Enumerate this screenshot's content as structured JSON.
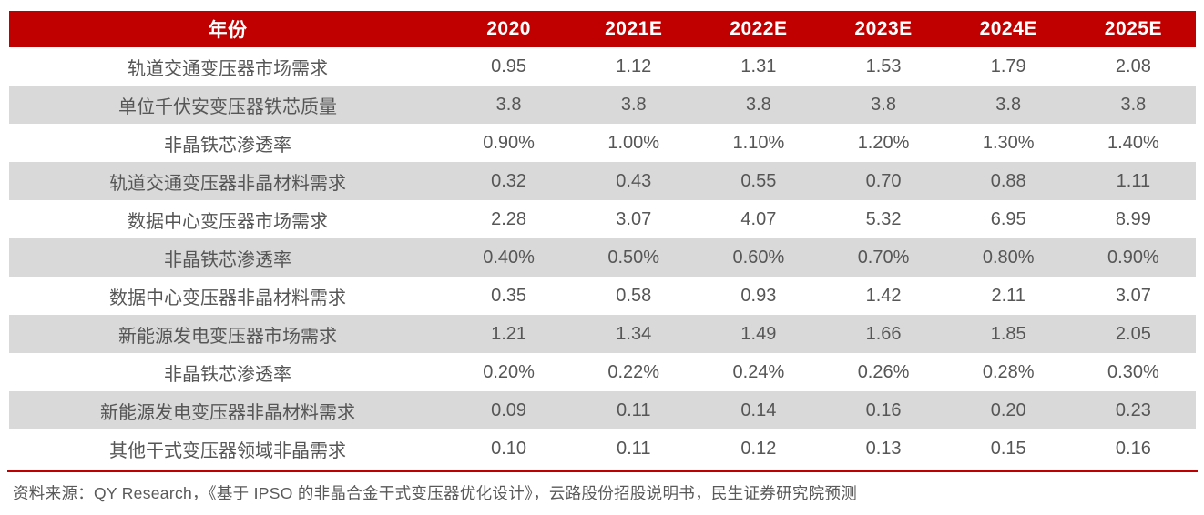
{
  "chart_data": {
    "type": "table",
    "title": "",
    "columns": [
      "年份",
      "2020",
      "2021E",
      "2022E",
      "2023E",
      "2024E",
      "2025E"
    ],
    "rows": [
      {
        "label": "轨道交通变压器市场需求",
        "values": [
          "0.95",
          "1.12",
          "1.31",
          "1.53",
          "1.79",
          "2.08"
        ]
      },
      {
        "label": "单位千伏安变压器铁芯质量",
        "values": [
          "3.8",
          "3.8",
          "3.8",
          "3.8",
          "3.8",
          "3.8"
        ]
      },
      {
        "label": "非晶铁芯渗透率",
        "values": [
          "0.90%",
          "1.00%",
          "1.10%",
          "1.20%",
          "1.30%",
          "1.40%"
        ]
      },
      {
        "label": "轨道交通变压器非晶材料需求",
        "values": [
          "0.32",
          "0.43",
          "0.55",
          "0.70",
          "0.88",
          "1.11"
        ]
      },
      {
        "label": "数据中心变压器市场需求",
        "values": [
          "2.28",
          "3.07",
          "4.07",
          "5.32",
          "6.95",
          "8.99"
        ]
      },
      {
        "label": "非晶铁芯渗透率",
        "values": [
          "0.40%",
          "0.50%",
          "0.60%",
          "0.70%",
          "0.80%",
          "0.90%"
        ]
      },
      {
        "label": "数据中心变压器非晶材料需求",
        "values": [
          "0.35",
          "0.58",
          "0.93",
          "1.42",
          "2.11",
          "3.07"
        ]
      },
      {
        "label": "新能源发电变压器市场需求",
        "values": [
          "1.21",
          "1.34",
          "1.49",
          "1.66",
          "1.85",
          "2.05"
        ]
      },
      {
        "label": "非晶铁芯渗透率",
        "values": [
          "0.20%",
          "0.22%",
          "0.24%",
          "0.26%",
          "0.28%",
          "0.30%"
        ]
      },
      {
        "label": "新能源发电变压器非晶材料需求",
        "values": [
          "0.09",
          "0.11",
          "0.14",
          "0.16",
          "0.20",
          "0.23"
        ]
      },
      {
        "label": "其他干式变压器领域非晶需求",
        "values": [
          "0.10",
          "0.11",
          "0.12",
          "0.13",
          "0.15",
          "0.16"
        ]
      }
    ],
    "layout": {
      "zebra_rows": true,
      "header_style": "solid-band",
      "gridlines": "none"
    }
  },
  "footer": {
    "source": "资料来源：QY Research，《基于 IPSO 的非晶合金干式变压器优化设计》，云路股份招股说明书，民生证券研究院预测"
  },
  "colors": {
    "header_bg": "#c00000",
    "header_text": "#ffffff",
    "row_alt_bg": "#d9d9d9",
    "row_bg": "#ffffff",
    "cell_text": "#565656",
    "rule": "#c00000",
    "source_text": "#595959"
  }
}
